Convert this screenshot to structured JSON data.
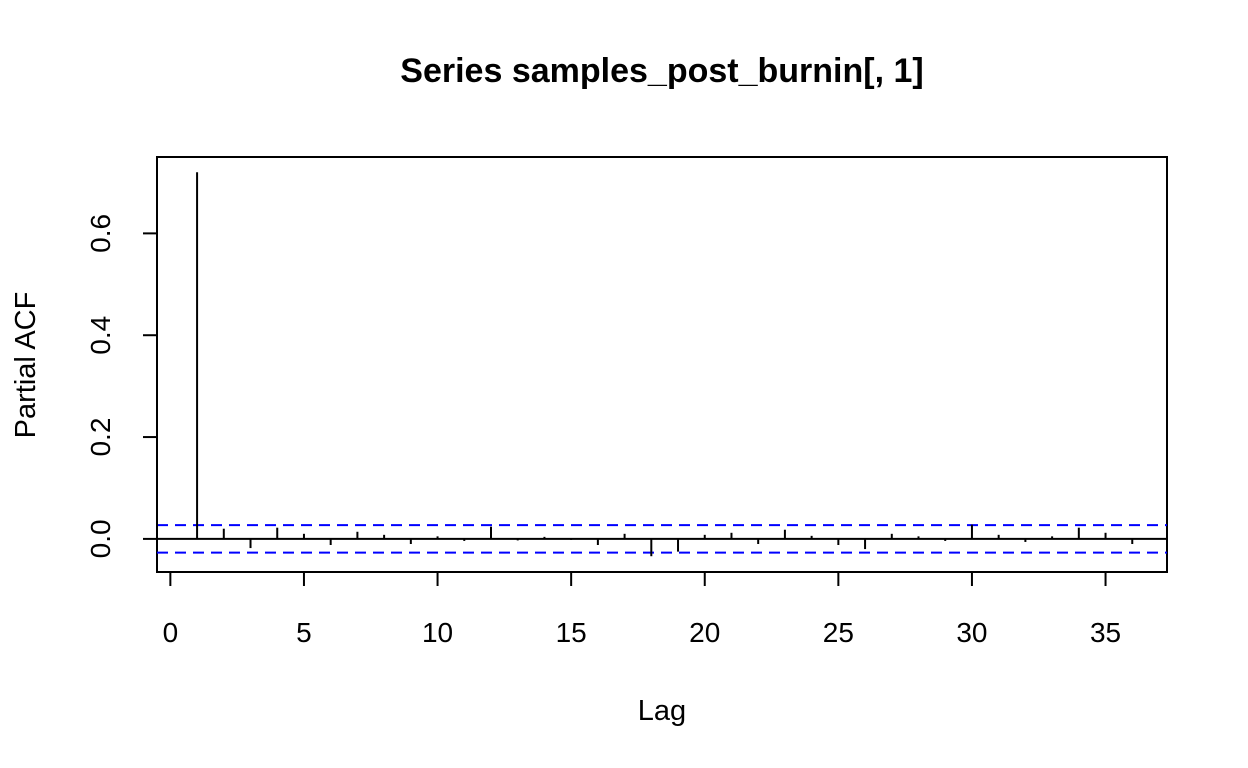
{
  "chart_data": {
    "type": "bar",
    "title": "Series  samples_post_burnin[, 1]",
    "xlabel": "Lag",
    "ylabel": "Partial ACF",
    "xlim": [
      -0.5,
      37.3
    ],
    "ylim": [
      -0.065,
      0.75
    ],
    "x_ticks": [
      0,
      5,
      10,
      15,
      20,
      25,
      30,
      35
    ],
    "y_ticks": [
      0.0,
      0.2,
      0.4,
      0.6
    ],
    "y_tick_labels": [
      "0.0",
      "0.2",
      "0.4",
      "0.6"
    ],
    "lags": [
      1,
      2,
      3,
      4,
      5,
      6,
      7,
      8,
      9,
      10,
      11,
      12,
      13,
      14,
      15,
      16,
      17,
      18,
      19,
      20,
      21,
      22,
      23,
      24,
      25,
      26,
      27,
      28,
      29,
      30,
      31,
      32,
      33,
      34,
      35,
      36
    ],
    "values": [
      0.72,
      0.02,
      -0.018,
      0.022,
      0.01,
      -0.012,
      0.014,
      0.008,
      -0.01,
      0.005,
      -0.004,
      0.024,
      -0.003,
      0.004,
      -0.002,
      -0.012,
      0.01,
      -0.034,
      -0.025,
      0.008,
      0.012,
      -0.01,
      0.018,
      0.006,
      -0.012,
      -0.02,
      0.01,
      0.005,
      -0.004,
      0.028,
      0.008,
      -0.006,
      0.005,
      0.022,
      0.012,
      -0.01
    ],
    "confidence_bound": 0.027,
    "colors": {
      "bars": "#000000",
      "confidence_lines": "#0000ff",
      "axes": "#000000"
    },
    "grid": false
  }
}
